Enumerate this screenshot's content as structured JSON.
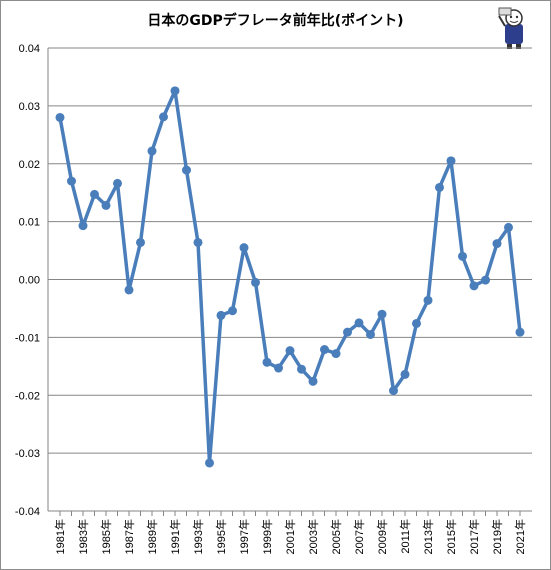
{
  "chart_data": {
    "type": "line",
    "title": "日本のGDPデフレータ前年比(ポイント)",
    "xlabel": "",
    "ylabel": "",
    "ylim": [
      -0.04,
      0.04
    ],
    "y_ticks": [
      "0.04",
      "0.03",
      "0.02",
      "0.01",
      "0.00",
      "-0.01",
      "-0.02",
      "-0.03",
      "-0.04"
    ],
    "x_tick_labels": [
      "1981年",
      "1983年",
      "1985年",
      "1987年",
      "1989年",
      "1991年",
      "1993年",
      "1995年",
      "1997年",
      "1999年",
      "2001年",
      "2003年",
      "2005年",
      "2007年",
      "2009年",
      "2011年",
      "2013年",
      "2015年",
      "2017年",
      "2019年",
      "2021年"
    ],
    "grid": true,
    "legend": "none",
    "series": [
      {
        "color": "#4a7ebb",
        "x": [
          1981,
          1982,
          1983,
          1984,
          1985,
          1986,
          1987,
          1988,
          1989,
          1990,
          1991,
          1992,
          1993,
          1994,
          1995,
          1996,
          1997,
          1998,
          1999,
          2000,
          2001,
          2002,
          2003,
          2004,
          2005,
          2006,
          2007,
          2008,
          2009,
          2010,
          2011,
          2012,
          2013,
          2014,
          2015,
          2016,
          2017,
          2018,
          2019,
          2020,
          2021
        ],
        "values": [
          0.028,
          0.017,
          0.0093,
          0.0147,
          0.0128,
          0.0166,
          -0.0018,
          0.0064,
          0.0222,
          0.0281,
          0.0326,
          0.0189,
          0.0064,
          -0.0317,
          -0.0062,
          -0.0054,
          0.0055,
          -0.0005,
          -0.0143,
          -0.0153,
          -0.0123,
          -0.0155,
          -0.0176,
          -0.0121,
          -0.0128,
          -0.0091,
          -0.0075,
          -0.0095,
          -0.006,
          -0.0192,
          -0.0164,
          -0.0076,
          -0.0036,
          0.0159,
          0.0205,
          0.004,
          -0.0011,
          -0.0001,
          0.0062,
          0.009,
          -0.0091
        ]
      }
    ]
  }
}
